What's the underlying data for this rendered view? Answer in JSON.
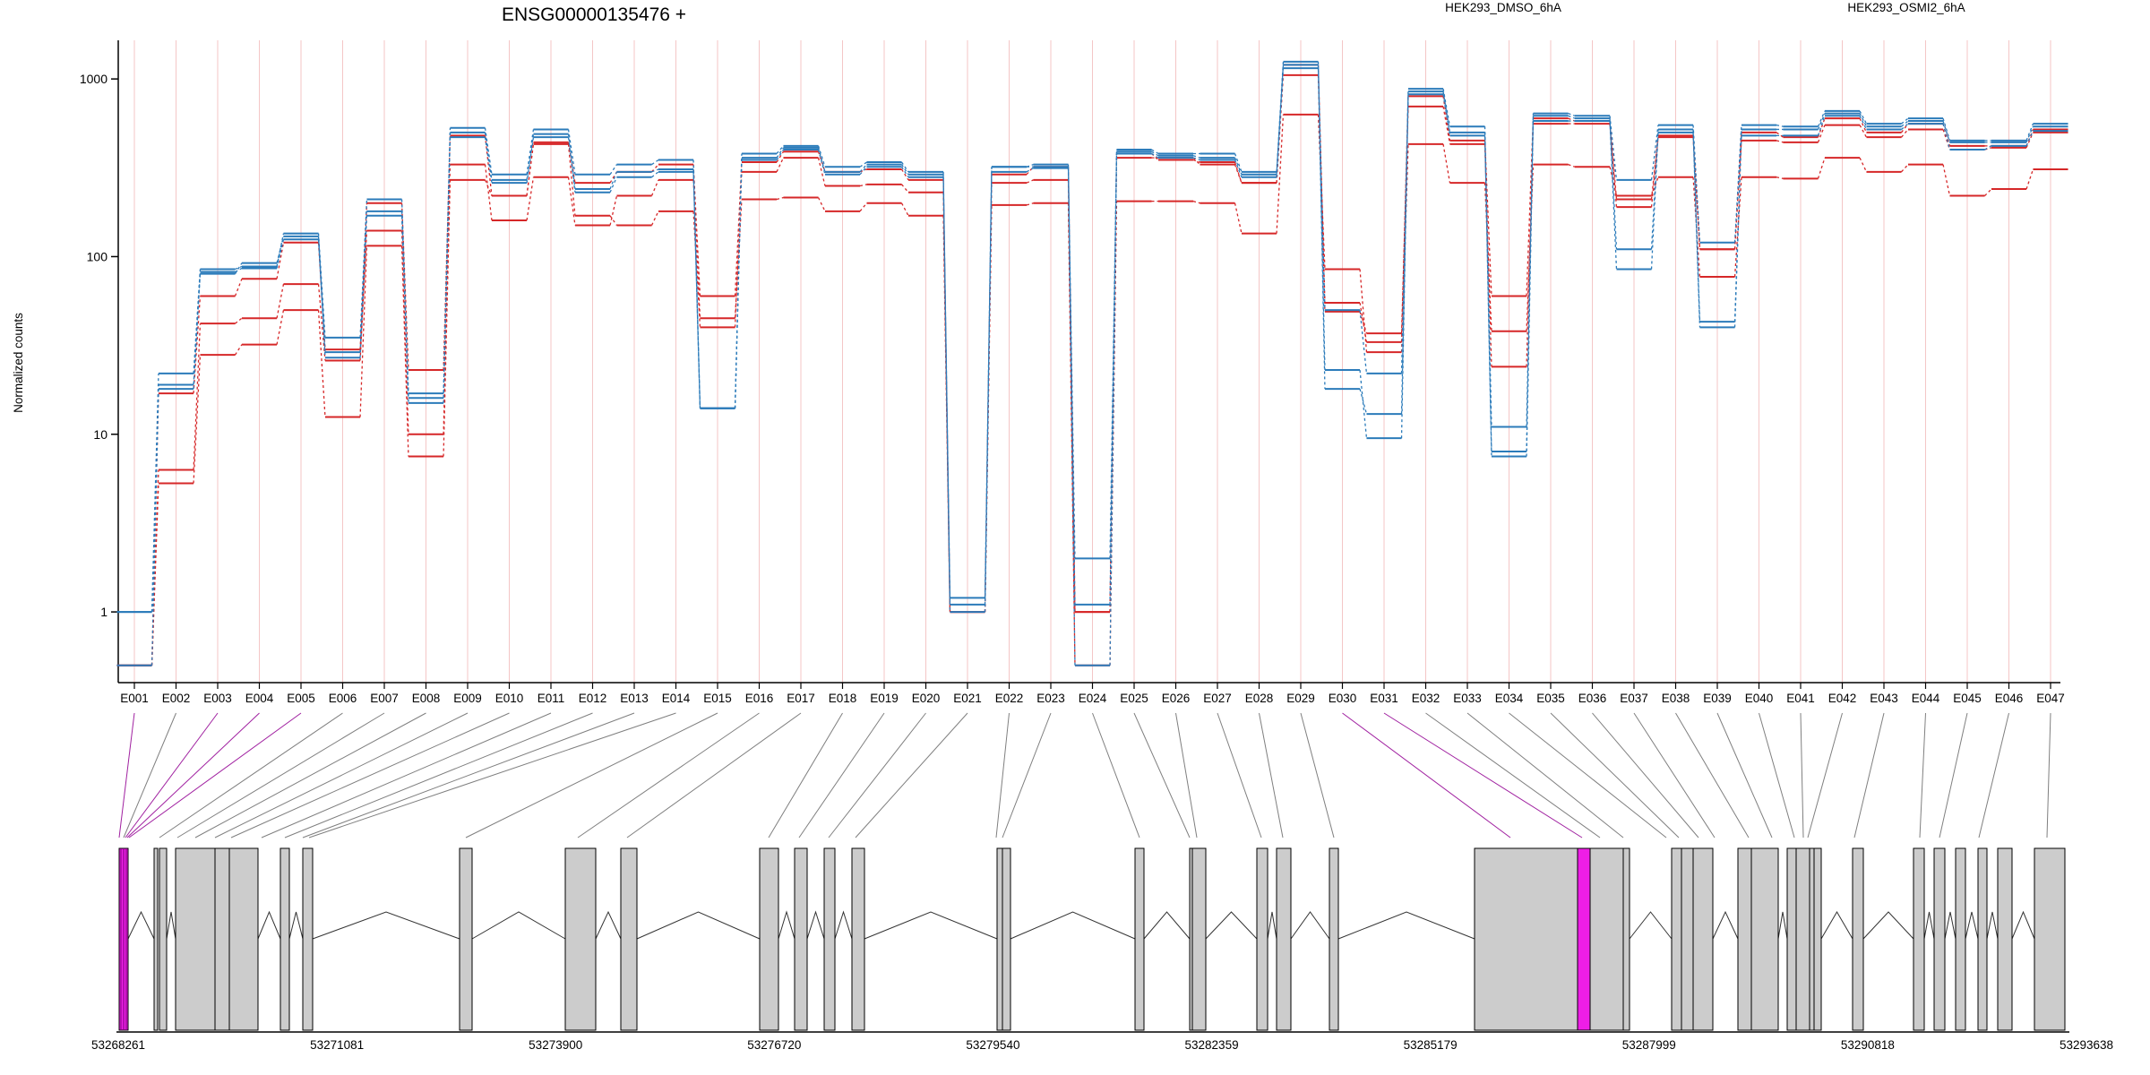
{
  "title": "ENSG00000135476 +",
  "ylabel": "Normalized counts",
  "colors": {
    "DMSO": "#d62728",
    "OSMI2": "#2b7bba",
    "exon": "#cccccc",
    "highlight": "#ee1ee6",
    "grid": "#f4c6c6"
  },
  "chart_data": {
    "type": "line",
    "title": "ENSG00000135476 +",
    "ylabel": "Normalized counts",
    "yscale": "log",
    "ylim": [
      0.4,
      1650
    ],
    "yticks": [
      1,
      10,
      100,
      1000
    ],
    "grid": true,
    "legend": [
      "HEK293_DMSO_6hA",
      "HEK293_OSMI2_6hA"
    ],
    "categories": [
      "E001",
      "E002",
      "E003",
      "E004",
      "E005",
      "E006",
      "E007",
      "E008",
      "E009",
      "E010",
      "E011",
      "E012",
      "E013",
      "E014",
      "E015",
      "E016",
      "E017",
      "E018",
      "E019",
      "E020",
      "E021",
      "E022",
      "E023",
      "E024",
      "E025",
      "E026",
      "E027",
      "E028",
      "E029",
      "E030",
      "E031",
      "E032",
      "E033",
      "E034",
      "E035",
      "E036",
      "E037",
      "E038",
      "E039",
      "E040",
      "E041",
      "E042",
      "E043",
      "E044",
      "E045",
      "E046",
      "E047"
    ],
    "series": [
      {
        "name": "HEK293_DMSO_6hA",
        "group": "DMSO",
        "values": [
          0.5,
          17,
          60,
          75,
          120,
          30,
          200,
          23,
          480,
          220,
          440,
          260,
          300,
          330,
          60,
          340,
          390,
          300,
          310,
          270,
          1,
          290,
          320,
          1,
          380,
          350,
          340,
          260,
          1200,
          55,
          33,
          800,
          450,
          60,
          600,
          580,
          210,
          480,
          110,
          500,
          470,
          600,
          500,
          560,
          420,
          420,
          520
        ]
      },
      {
        "name": "HEK293_DMSO_6hA",
        "group": "DMSO",
        "values": [
          0.5,
          6.3,
          42,
          45,
          70,
          26,
          140,
          10,
          330,
          160,
          280,
          150,
          220,
          270,
          45,
          210,
          215,
          180,
          200,
          170,
          1,
          195,
          200,
          0.5,
          205,
          205,
          200,
          135,
          630,
          85,
          29,
          430,
          260,
          38,
          330,
          320,
          220,
          280,
          77,
          280,
          275,
          360,
          300,
          330,
          220,
          240,
          310
        ]
      },
      {
        "name": "HEK293_DMSO_6hA",
        "group": "DMSO",
        "values": [
          0.5,
          5.3,
          28,
          32,
          50,
          12.5,
          115,
          7.5,
          270,
          220,
          430,
          170,
          150,
          180,
          40,
          300,
          360,
          250,
          255,
          230,
          1,
          260,
          270,
          1,
          360,
          360,
          330,
          260,
          1050,
          49,
          37,
          700,
          430,
          24,
          560,
          560,
          190,
          470,
          110,
          450,
          440,
          550,
          470,
          520,
          400,
          410,
          500
        ]
      },
      {
        "name": "HEK293_OSMI2_6hA",
        "group": "OSMI2",
        "values": [
          1,
          22,
          85,
          88,
          135,
          35,
          210,
          17,
          530,
          290,
          520,
          290,
          330,
          350,
          14,
          380,
          420,
          320,
          340,
          300,
          1.2,
          320,
          330,
          2,
          400,
          380,
          380,
          300,
          1250,
          23,
          9.5,
          880,
          540,
          11,
          640,
          620,
          270,
          550,
          120,
          550,
          540,
          660,
          560,
          600,
          450,
          450,
          560
        ]
      },
      {
        "name": "HEK293_OSMI2_6hA",
        "group": "OSMI2",
        "values": [
          1,
          19,
          80,
          92,
          130,
          29,
          180,
          15,
          500,
          270,
          490,
          240,
          300,
          310,
          14,
          360,
          410,
          300,
          330,
          290,
          1.1,
          320,
          320,
          1.1,
          390,
          370,
          360,
          290,
          1200,
          18,
          13,
          850,
          500,
          8,
          620,
          600,
          110,
          520,
          43,
          520,
          520,
          640,
          540,
          580,
          440,
          440,
          540
        ]
      },
      {
        "name": "HEK293_OSMI2_6hA",
        "group": "OSMI2",
        "values": [
          0.5,
          18,
          82,
          86,
          125,
          27,
          170,
          16,
          470,
          260,
          470,
          230,
          280,
          300,
          14,
          350,
          400,
          290,
          320,
          280,
          1,
          300,
          315,
          0.5,
          380,
          360,
          350,
          280,
          1150,
          50,
          22,
          820,
          480,
          7.5,
          580,
          580,
          85,
          500,
          40,
          480,
          480,
          620,
          520,
          560,
          400,
          420,
          510
        ]
      }
    ]
  },
  "exons": {
    "genome_ticks": [
      "53268261",
      "53271081",
      "53273900",
      "53276720",
      "53279540",
      "53282359",
      "53285179",
      "53287999",
      "53290818",
      "53293638"
    ],
    "highlighted": [
      "E001",
      "E003",
      "E004",
      "E005",
      "E030",
      "E031"
    ]
  }
}
